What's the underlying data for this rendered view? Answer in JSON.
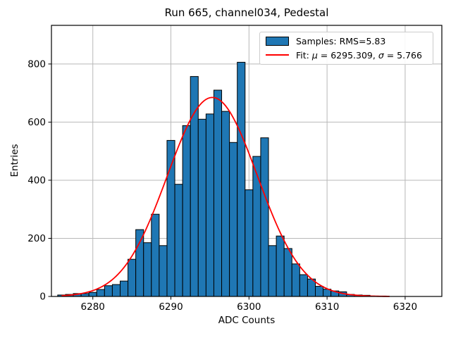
{
  "chart_data": {
    "type": "bar",
    "title": "Run 665, channel034, Pedestal",
    "xlabel": "ADC Counts",
    "ylabel": "Entries",
    "bin_centers_start": 6276,
    "bin_width": 1,
    "counts": [
      5,
      7,
      10,
      10,
      14,
      24,
      37,
      41,
      53,
      128,
      230,
      185,
      283,
      175,
      537,
      386,
      588,
      757,
      610,
      628,
      710,
      637,
      530,
      806,
      367,
      482,
      546,
      175,
      208,
      165,
      112,
      75,
      60,
      35,
      25,
      19,
      16,
      7,
      5,
      4
    ],
    "axes": {
      "x_min": 6274.7,
      "x_max": 6324.7,
      "y_min": 0,
      "y_max": 933
    },
    "xticks": [
      6280,
      6290,
      6300,
      6310,
      6320
    ],
    "yticks": [
      0,
      200,
      400,
      600,
      800
    ],
    "grid": true,
    "legend_position": "upper right",
    "bar_color": "#1f77b4",
    "bar_edge_color": "#000000",
    "grid_color": "#b8b8b8",
    "fit": {
      "mu": 6295.309,
      "sigma": 5.766,
      "amplitude": 685,
      "x_start": 6276,
      "x_end": 6318,
      "color": "#ff0000"
    }
  },
  "legend": {
    "samples_label": "Samples: RMS=5.83",
    "fit_prefix": "Fit: ",
    "fit_mu_symbol": "μ",
    "fit_mu_value": " = 6295.309, ",
    "fit_sigma_symbol": "σ",
    "fit_sigma_value": " = 5.766"
  }
}
